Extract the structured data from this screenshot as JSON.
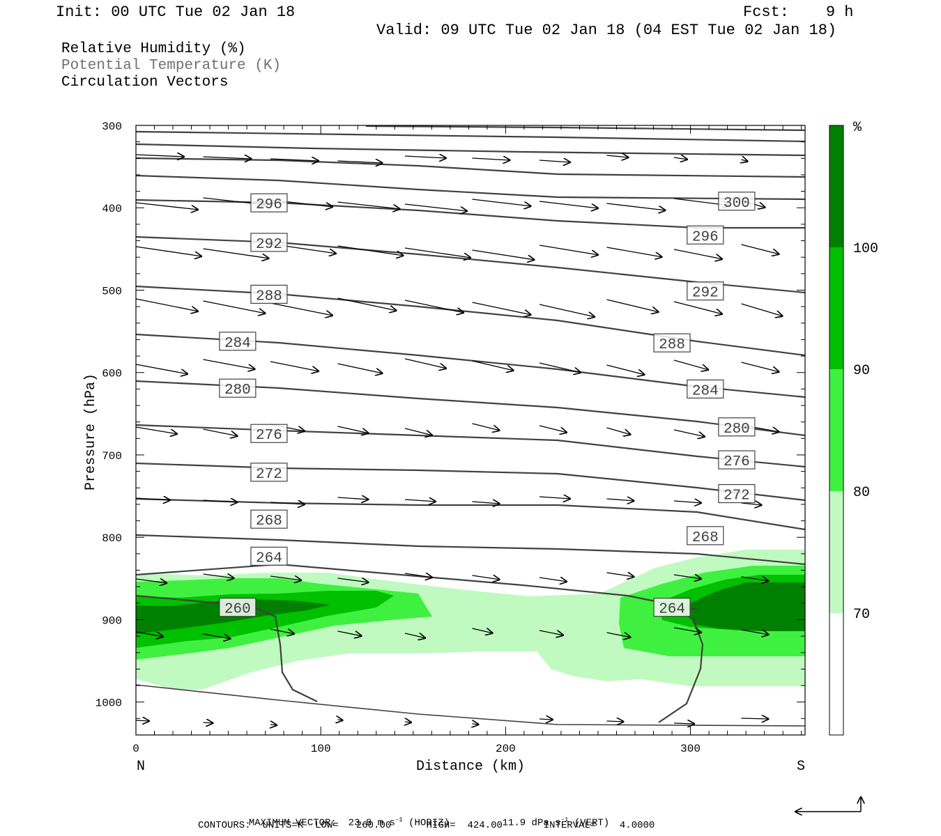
{
  "header": {
    "init": "Init: 00 UTC Tue 02 Jan 18",
    "fcst": "Fcst:    9 h",
    "valid": "Valid: 09 UTC Tue 02 Jan 18 (04 EST Tue 02 Jan 18)"
  },
  "legend": {
    "line1": "Relative Humidity (%)",
    "line2": "Potential Temperature (K)",
    "line3": "Circulation Vectors"
  },
  "footer": {
    "max_vector_label": "MAXIMUM VECTOR:",
    "max_vector_horiz_value": "23.8 m s",
    "max_vector_horiz_unit_tail": " (HORIZ)",
    "max_vector_vert_value": "11.9 dPa s",
    "max_vector_vert_unit_tail": " (VERT)",
    "exponent": "-1",
    "contours_line": "CONTOURS:  UNITS=K  LOW=   260.00      HIGH=  424.00       INTERVAL=    4.0000"
  },
  "colors": {
    "rh_70_80": "#c0fac0",
    "rh_80_90": "#40f040",
    "rh_90_100": "#00c000",
    "rh_100": "#008000",
    "contour": "#404040",
    "vector": "#000000"
  },
  "chart_data": {
    "type": "cross-section",
    "xlabel": "Distance (km)",
    "ylabel": "Pressure (hPa)",
    "xlim": [
      0,
      362
    ],
    "ylim": [
      1040,
      300
    ],
    "x_ticks": [
      0,
      100,
      200,
      300
    ],
    "y_ticks": [
      300,
      400,
      500,
      600,
      700,
      800,
      900,
      1000
    ],
    "x_end_labels": {
      "left": "N",
      "right": "S"
    },
    "colorbar": {
      "unit": "%",
      "levels": [
        70,
        80,
        90,
        100
      ]
    },
    "theta_contour_labels": [
      {
        "value": "296",
        "x": 72,
        "p": 394
      },
      {
        "value": "300",
        "x": 325,
        "p": 392
      },
      {
        "value": "296",
        "x": 308,
        "p": 433
      },
      {
        "value": "292",
        "x": 72,
        "p": 442
      },
      {
        "value": "292",
        "x": 308,
        "p": 501
      },
      {
        "value": "288",
        "x": 72,
        "p": 505
      },
      {
        "value": "288",
        "x": 290,
        "p": 564
      },
      {
        "value": "284",
        "x": 55,
        "p": 562
      },
      {
        "value": "284",
        "x": 308,
        "p": 620
      },
      {
        "value": "280",
        "x": 55,
        "p": 619
      },
      {
        "value": "280",
        "x": 325,
        "p": 666
      },
      {
        "value": "276",
        "x": 72,
        "p": 674
      },
      {
        "value": "276",
        "x": 325,
        "p": 706
      },
      {
        "value": "272",
        "x": 72,
        "p": 721
      },
      {
        "value": "272",
        "x": 325,
        "p": 747
      },
      {
        "value": "268",
        "x": 72,
        "p": 778
      },
      {
        "value": "268",
        "x": 308,
        "p": 798
      },
      {
        "value": "264",
        "x": 72,
        "p": 823
      },
      {
        "value": "264",
        "x": 290,
        "p": 885
      },
      {
        "value": "260",
        "x": 55,
        "p": 885
      }
    ]
  }
}
